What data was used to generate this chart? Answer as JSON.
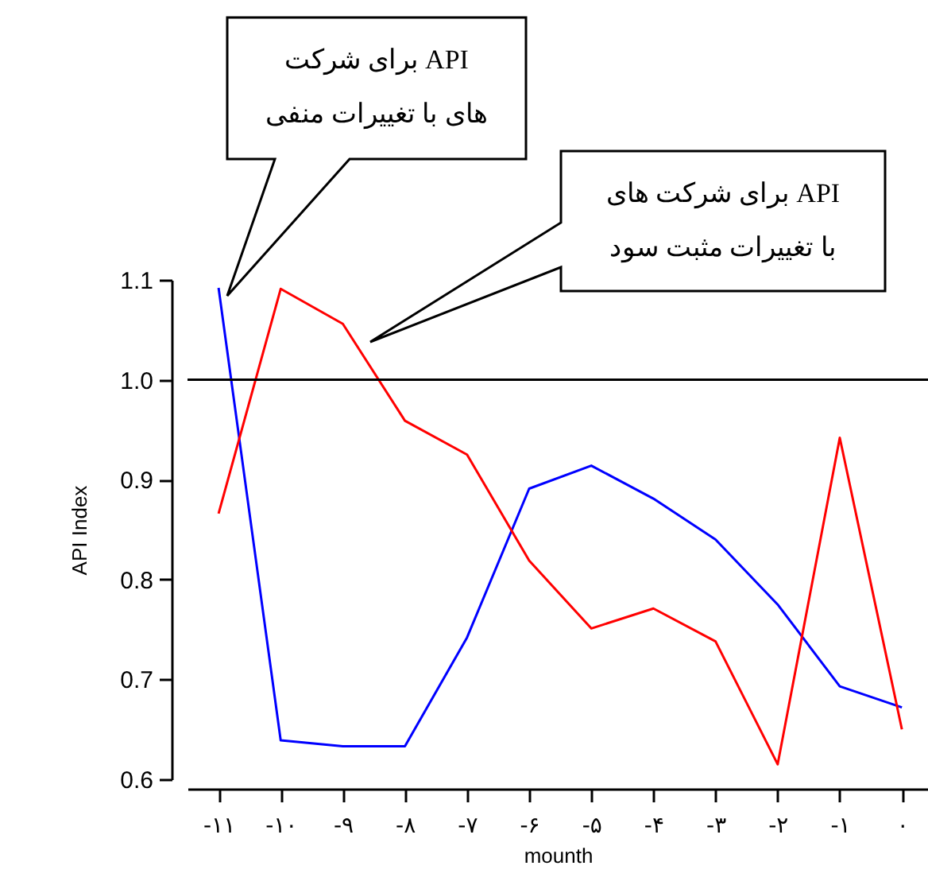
{
  "chart_data": {
    "type": "line",
    "xlabel": "mounth",
    "ylabel": "API Index",
    "x": [
      -11,
      -10,
      -9,
      -8,
      -7,
      -6,
      -5,
      -4,
      -3,
      -2,
      -1,
      0
    ],
    "series": [
      {
        "color": "#0000ff",
        "values": [
          1.092,
          0.639,
          0.633,
          0.633,
          0.742,
          0.891,
          0.914,
          0.881,
          0.84,
          0.775,
          0.693,
          0.672
        ]
      },
      {
        "color": "#ff0000",
        "values": [
          0.866,
          1.091,
          1.056,
          0.959,
          0.925,
          0.819,
          0.751,
          0.771,
          0.738,
          0.615,
          0.942,
          0.65
        ]
      }
    ],
    "annotations": [
      "API برای شرکت های با تغییرات منفی",
      "API برای شرکت های با تغییرات مثبت سود"
    ],
    "xlim": [
      -11.5,
      0.42
    ],
    "xticks": [
      {
        "value": -11,
        "label": "-۱۱"
      },
      {
        "value": -10,
        "label": "-۱۰"
      },
      {
        "value": -9,
        "label": "-۹"
      },
      {
        "value": -8,
        "label": "-۸"
      },
      {
        "value": -7,
        "label": "-۷"
      },
      {
        "value": -6,
        "label": "-۶"
      },
      {
        "value": -5,
        "label": "-۵"
      },
      {
        "value": -4,
        "label": "-۴"
      },
      {
        "value": -3,
        "label": "-۳"
      },
      {
        "value": -2,
        "label": "-۲"
      },
      {
        "value": -1,
        "label": "-۱"
      },
      {
        "value": 0,
        "label": "۰"
      }
    ],
    "ylim": [
      0.6,
      1.1
    ],
    "yticks": [
      0.6,
      0.7,
      0.8,
      0.9,
      {
        "value": 1,
        "label": "1.0"
      },
      1.1
    ],
    "ref_lines": [
      {
        "axis": "y",
        "value": 1.0,
        "color": "#000000"
      }
    ],
    "grid": false
  }
}
